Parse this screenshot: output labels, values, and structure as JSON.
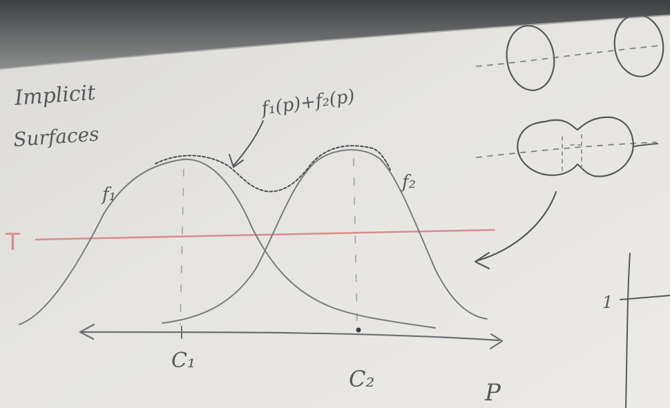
{
  "heading": {
    "line1": "Implicit",
    "line2": "Surfaces"
  },
  "labels": {
    "sum": "f₁(p)+f₂(p)",
    "f1": "f₁",
    "f2": "f₂",
    "threshold": "T",
    "c1": "C₁",
    "c2": "C₂",
    "axis": "P",
    "tick": "1"
  },
  "colors": {
    "board": "#e9e8e4",
    "tray": "#6c6e6f",
    "ink": "#65676b",
    "threshold_line": "#d98c8c"
  }
}
